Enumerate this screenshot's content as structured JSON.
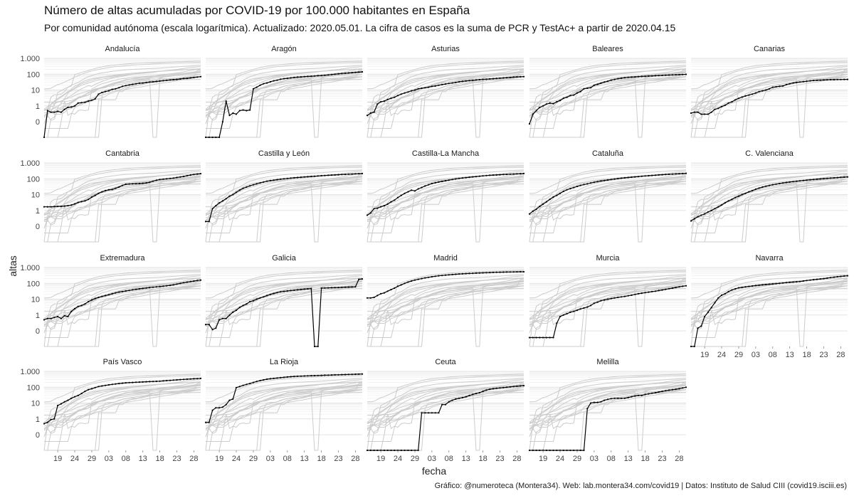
{
  "title": "Número de altas acumuladas por COVID-19 por 100.000 habitantes en España",
  "subtitle": "Por comunidad autónoma (escala logarítmica). Actualizado: 2020.05.01. La cifra de casos es la suma de PCR y TestAc+ a partir de 2020.04.15",
  "caption": "Gráfico: @numeroteca (Montera34). Web: lab.montera34.com/covid19 | Datos: Instituto de Salud CIII (covid19.isciii.es)",
  "colors": {
    "highlight": "#000000",
    "background_series": "#cccccc",
    "grid": "#e3e3e3"
  },
  "chart_data": {
    "type": "line",
    "title": "Número de altas acumuladas por COVID-19 por 100.000 habitantes en España",
    "subtitle": "Por comunidad autónoma (escala logarítmica). Actualizado: 2020.05.01. La cifra de casos es la suma de PCR y TestAc+ a partir de 2020.04.15",
    "xlabel": "fecha",
    "ylabel": "altas",
    "y_scale": "log",
    "y_tick_labels": [
      "1.000",
      "100",
      "10",
      "1",
      "0"
    ],
    "y_tick_values": [
      1000,
      100,
      10,
      1,
      0.1
    ],
    "x_tick_labels": [
      "19",
      "24",
      "29",
      "03",
      "08",
      "13",
      "18",
      "23",
      "28"
    ],
    "x_tick_dates": [
      "2020-03-19",
      "2020-03-24",
      "2020-03-29",
      "2020-04-03",
      "2020-04-08",
      "2020-04-13",
      "2020-04-18",
      "2020-04-23",
      "2020-04-28"
    ],
    "x_range": [
      "2020-03-15",
      "2020-04-30"
    ],
    "grid": true,
    "facets": [
      {
        "name": "Andalucía",
        "values": [
          0.02,
          0.5,
          0.4,
          0.4,
          0.45,
          0.4,
          0.6,
          0.8,
          0.85,
          1.0,
          1.5,
          1.6,
          1.7,
          2.0,
          2.3,
          2.8,
          5.5,
          7,
          8,
          9,
          11,
          12,
          14,
          17,
          19,
          21,
          23,
          25,
          27,
          28,
          30,
          32,
          33,
          35,
          37,
          39,
          41,
          43,
          45,
          47,
          50,
          53,
          55,
          58,
          62,
          66,
          70
        ]
      },
      {
        "name": "Aragón",
        "values": [
          0.02,
          0.02,
          0.02,
          0.02,
          0.02,
          0.1,
          2.0,
          0.25,
          0.35,
          0.3,
          0.5,
          0.55,
          0.5,
          0.55,
          12,
          15,
          20,
          25,
          28,
          33,
          38,
          42,
          48,
          52,
          55,
          58,
          62,
          65,
          67,
          70,
          72,
          75,
          77,
          80,
          82,
          85,
          90,
          95,
          100,
          105,
          110,
          115,
          120,
          125,
          130,
          135,
          140
        ]
      },
      {
        "name": "Asturias",
        "values": [
          0.25,
          0.35,
          0.4,
          1.3,
          1.8,
          2.0,
          2.5,
          3.0,
          3.5,
          4.5,
          5.5,
          6.5,
          7.5,
          9,
          10,
          12,
          13,
          14,
          15,
          17,
          18,
          20,
          22,
          24,
          26,
          28,
          30,
          33,
          35,
          37,
          39,
          41,
          43,
          45,
          47,
          48,
          50,
          52,
          54,
          56,
          58,
          60,
          62,
          65,
          67,
          69,
          70
        ]
      },
      {
        "name": "Baleares",
        "values": [
          0.08,
          0.3,
          0.5,
          0.8,
          1.0,
          1.3,
          1.5,
          1.4,
          1.8,
          2.2,
          3.0,
          3.5,
          4.5,
          4.8,
          6.5,
          8,
          12,
          13,
          14,
          20,
          23,
          27,
          32,
          36,
          42,
          47,
          52,
          56,
          60,
          63,
          65,
          67,
          70,
          72,
          74,
          76,
          78,
          80,
          82,
          84,
          86,
          88,
          90,
          92,
          94,
          96,
          98
        ]
      },
      {
        "name": "Canarias",
        "values": [
          0.35,
          0.4,
          0.4,
          0.3,
          0.3,
          0.3,
          0.4,
          0.6,
          0.7,
          0.9,
          1.1,
          1.5,
          1.8,
          2.4,
          3.0,
          3.6,
          4.2,
          4.8,
          5.5,
          6.5,
          8,
          9,
          10,
          12,
          15,
          16,
          17,
          18,
          22,
          25,
          28,
          30,
          32,
          34,
          36,
          38,
          40,
          41,
          42,
          43,
          44,
          45,
          45,
          46,
          46,
          47,
          47
        ]
      },
      {
        "name": "Cantabria",
        "values": [
          1.7,
          1.7,
          1.7,
          1.75,
          1.8,
          1.8,
          1.9,
          2.0,
          2.2,
          2.6,
          3.2,
          3.6,
          4.0,
          5,
          7,
          9,
          12,
          15,
          18,
          20,
          21,
          25,
          30,
          38,
          45,
          47,
          48,
          49,
          50,
          52,
          55,
          60,
          70,
          80,
          90,
          95,
          100,
          105,
          110,
          120,
          130,
          140,
          155,
          170,
          185,
          200,
          210
        ]
      },
      {
        "name": "Castilla y León",
        "values": [
          0.2,
          0.2,
          1.3,
          2.0,
          3.0,
          4.0,
          5.5,
          8,
          10,
          14,
          19,
          25,
          30,
          36,
          42,
          48,
          55,
          62,
          70,
          76,
          82,
          88,
          95,
          100,
          105,
          110,
          115,
          120,
          125,
          130,
          135,
          140,
          145,
          150,
          155,
          160,
          165,
          170,
          175,
          180,
          185,
          190,
          195,
          200,
          205,
          210,
          215
        ]
      },
      {
        "name": "Castilla-La Mancha",
        "values": [
          0.5,
          0.7,
          1.3,
          1.4,
          1.7,
          2.0,
          2.5,
          3.5,
          4.5,
          6.5,
          9,
          12,
          15,
          19,
          17,
          23,
          28,
          35,
          42,
          50,
          56,
          62,
          68,
          75,
          82,
          90,
          98,
          105,
          112,
          118,
          125,
          132,
          138,
          145,
          152,
          158,
          165,
          170,
          175,
          180,
          185,
          190,
          195,
          200,
          205,
          210,
          215
        ]
      },
      {
        "name": "Cataluña",
        "values": [
          0.6,
          0.9,
          1.2,
          1.8,
          2.5,
          3.5,
          5,
          7,
          9,
          12,
          16,
          20,
          24,
          28,
          33,
          38,
          43,
          48,
          54,
          60,
          66,
          72,
          78,
          84,
          90,
          96,
          102,
          108,
          114,
          120,
          126,
          132,
          138,
          144,
          150,
          156,
          162,
          168,
          174,
          180,
          186,
          192,
          198,
          204,
          210,
          215,
          220
        ]
      },
      {
        "name": "C. Valenciana",
        "values": [
          0.22,
          0.3,
          0.4,
          0.5,
          0.6,
          0.8,
          1.0,
          1.3,
          1.7,
          2.2,
          3.0,
          4.0,
          5.0,
          6.5,
          8,
          10,
          12,
          15,
          18,
          22,
          26,
          30,
          34,
          38,
          42,
          46,
          50,
          54,
          58,
          62,
          66,
          70,
          74,
          78,
          82,
          86,
          90,
          94,
          98,
          102,
          106,
          110,
          114,
          118,
          122,
          126,
          130
        ]
      },
      {
        "name": "Extremadura",
        "values": [
          0.5,
          0.6,
          0.6,
          0.7,
          0.8,
          0.6,
          0.9,
          0.8,
          1.7,
          2.5,
          3.5,
          4.0,
          5,
          7,
          9,
          11,
          13,
          15,
          17,
          19,
          22,
          25,
          28,
          30,
          33,
          36,
          39,
          42,
          45,
          48,
          51,
          54,
          57,
          60,
          63,
          66,
          70,
          75,
          80,
          90,
          100,
          110,
          120,
          130,
          140,
          150,
          160
        ]
      },
      {
        "name": "Galicia",
        "values": [
          0.25,
          0.25,
          0.12,
          0.15,
          0.5,
          0.6,
          0.6,
          1.0,
          1.5,
          2.0,
          3.0,
          4.0,
          5,
          7,
          8,
          10,
          12,
          14,
          17,
          20,
          23,
          26,
          29,
          31,
          33,
          35,
          37,
          39,
          41,
          43,
          45,
          47,
          0.02,
          0.02,
          50,
          51,
          52,
          53,
          54,
          55,
          56,
          57,
          58,
          59,
          60,
          180,
          190
        ]
      },
      {
        "name": "Madrid",
        "values": [
          12,
          12,
          13,
          17,
          22,
          25,
          32,
          40,
          50,
          65,
          80,
          100,
          120,
          140,
          160,
          180,
          200,
          220,
          240,
          260,
          280,
          300,
          315,
          330,
          345,
          360,
          375,
          390,
          400,
          410,
          420,
          430,
          440,
          450,
          460,
          470,
          480,
          490,
          500,
          505,
          510,
          515,
          520,
          525,
          530,
          535,
          540
        ]
      },
      {
        "name": "Murcia",
        "values": [
          0.05,
          0.05,
          0.05,
          0.05,
          0.05,
          0.05,
          0.05,
          0.05,
          0.3,
          0.8,
          1.0,
          1.2,
          1.5,
          1.7,
          2.0,
          2.4,
          2.8,
          3.2,
          4.0,
          5.5,
          6.5,
          8,
          9,
          10,
          11,
          12,
          13,
          14,
          15,
          16.5,
          18,
          20,
          22,
          24,
          26,
          28,
          30,
          32,
          35,
          38,
          42,
          46,
          50,
          55,
          60,
          65,
          70
        ]
      },
      {
        "name": "Navarra",
        "values": [
          0.02,
          0.02,
          0.15,
          0.2,
          0.8,
          1.5,
          3,
          6,
          12,
          18,
          22,
          30,
          38,
          45,
          52,
          56,
          60,
          64,
          68,
          72,
          76,
          80,
          84,
          88,
          92,
          96,
          100,
          105,
          110,
          115,
          120,
          125,
          130,
          140,
          150,
          160,
          170,
          180,
          190,
          200,
          215,
          230,
          245,
          260,
          275,
          290,
          300
        ]
      },
      {
        "name": "País Vasco",
        "values": [
          0.5,
          0.6,
          0.9,
          1.0,
          7,
          9,
          12,
          15,
          20,
          25,
          30,
          40,
          55,
          70,
          80,
          95,
          110,
          120,
          130,
          140,
          150,
          160,
          170,
          180,
          190,
          195,
          200,
          205,
          210,
          215,
          220,
          225,
          230,
          235,
          240,
          250,
          260,
          270,
          280,
          290,
          300,
          310,
          320,
          330,
          340,
          350,
          360
        ]
      },
      {
        "name": "La Rioja",
        "values": [
          0.6,
          0.6,
          3.5,
          5,
          5,
          5.5,
          8,
          15,
          18,
          95,
          110,
          130,
          150,
          170,
          200,
          230,
          260,
          290,
          320,
          340,
          360,
          380,
          400,
          420,
          440,
          460,
          480,
          490,
          500,
          510,
          520,
          530,
          540,
          550,
          560,
          570,
          580,
          590,
          600,
          610,
          620,
          630,
          640,
          650,
          660,
          670,
          680
        ]
      },
      {
        "name": "Ceuta",
        "values": [
          0.02,
          0.02,
          0.02,
          0.02,
          0.02,
          0.02,
          0.02,
          0.02,
          0.02,
          0.02,
          0.02,
          0.02,
          0.02,
          0.02,
          0.02,
          0.02,
          2.4,
          2.4,
          2.4,
          2.4,
          2.4,
          2.4,
          8,
          8,
          12,
          15,
          18,
          20,
          22,
          25,
          30,
          35,
          40,
          45,
          55,
          65,
          75,
          80,
          85,
          90,
          95,
          100,
          105,
          110,
          115,
          120,
          125
        ]
      },
      {
        "name": "Melilla",
        "values": [
          0.02,
          0.02,
          0.02,
          0.02,
          0.02,
          0.02,
          0.02,
          0.02,
          0.02,
          0.02,
          0.02,
          0.02,
          0.02,
          0.02,
          0.02,
          0.02,
          0.02,
          4.5,
          10,
          11,
          11,
          12,
          15,
          17,
          19,
          20,
          20,
          20,
          20,
          22,
          25,
          28,
          30,
          30,
          35,
          38,
          42,
          45,
          50,
          55,
          60,
          65,
          70,
          75,
          80,
          90,
          100
        ]
      }
    ]
  }
}
